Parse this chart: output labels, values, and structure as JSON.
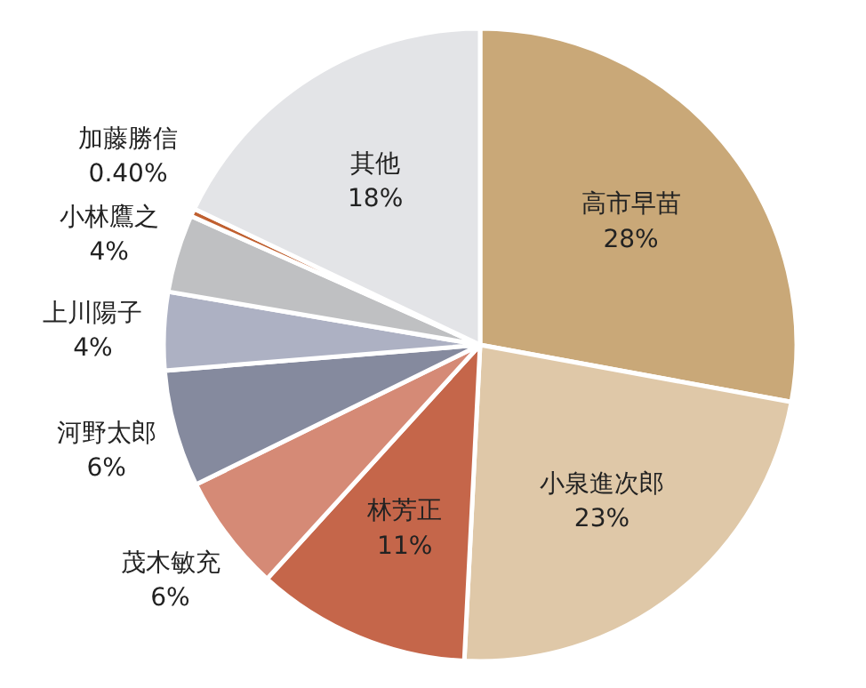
{
  "chart_data": {
    "type": "pie",
    "categories": [
      "高市早苗",
      "小泉進次郎",
      "林芳正",
      "茂木敏充",
      "河野太郎",
      "上川陽子",
      "小林鷹之",
      "加藤勝信",
      "其他"
    ],
    "values": [
      28,
      23,
      11,
      6,
      6,
      4,
      4,
      0.4,
      18
    ],
    "value_labels": [
      "28%",
      "23%",
      "11%",
      "6%",
      "6%",
      "4%",
      "4%",
      "0.40%",
      "18%"
    ],
    "colors": [
      "#c9a878",
      "#dfc8a8",
      "#c5664a",
      "#d58a76",
      "#858a9e",
      "#adb1c3",
      "#bfc0c2",
      "#c06030",
      "#e3e4e7"
    ]
  }
}
